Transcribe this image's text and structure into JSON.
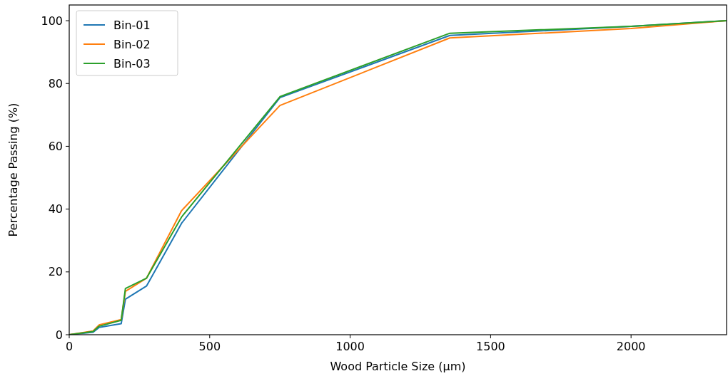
{
  "chart_data": {
    "type": "line",
    "xlabel": "Wood Particle Size (µm)",
    "ylabel": "Percentage Passing (%)",
    "x": [
      0,
      85,
      106,
      185,
      200,
      275,
      400,
      750,
      1355,
      2000,
      2340
    ],
    "series": [
      {
        "name": "Bin-01",
        "color": "#1f77b4",
        "values": [
          0,
          0.8,
          2.3,
          3.5,
          11.3,
          15.5,
          35.5,
          75.5,
          95.3,
          98.2,
          100
        ]
      },
      {
        "name": "Bin-02",
        "color": "#ff7f0e",
        "values": [
          0,
          1.2,
          3.1,
          4.8,
          13.8,
          18,
          39.5,
          73,
          94.5,
          97.5,
          100
        ]
      },
      {
        "name": "Bin-03",
        "color": "#2ca02c",
        "values": [
          0,
          1,
          2.7,
          4.6,
          14.7,
          18,
          37.5,
          75.8,
          96,
          98.2,
          100
        ]
      }
    ],
    "xlim": [
      0,
      2340
    ],
    "xticks": [
      0,
      500,
      1000,
      1500,
      2000
    ],
    "ylim": [
      0,
      105
    ],
    "yticks": [
      0,
      20,
      40,
      60,
      80,
      100
    ],
    "legend": "top left",
    "grid": false,
    "marker": "none",
    "line_style": "solid"
  }
}
